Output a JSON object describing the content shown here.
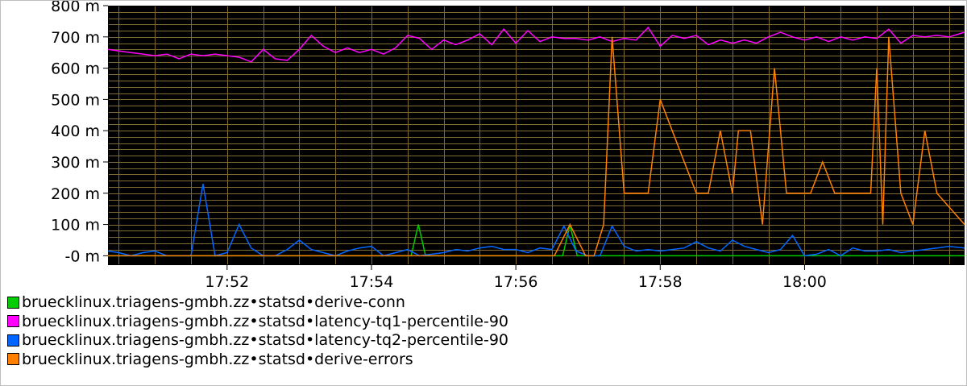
{
  "chart_data": {
    "type": "line",
    "background": "#000000",
    "grid": true,
    "grid_color": "#806a33",
    "ylim": [
      -0.03,
      0.8
    ],
    "y_ticks": [
      {
        "value": 0.8,
        "label": "800 m"
      },
      {
        "value": 0.7,
        "label": "700 m"
      },
      {
        "value": 0.6,
        "label": "600 m"
      },
      {
        "value": 0.5,
        "label": "500 m"
      },
      {
        "value": 0.4,
        "label": "400 m"
      },
      {
        "value": 0.3,
        "label": "300 m"
      },
      {
        "value": 0.2,
        "label": "200 m"
      },
      {
        "value": 0.1,
        "label": "100 m"
      },
      {
        "value": 0.0,
        "label": "-0 m"
      }
    ],
    "xlim": [
      "17:50:21",
      "18:02:13"
    ],
    "x_ticks": [
      {
        "value": "17:52:00",
        "label": "17:52"
      },
      {
        "value": "17:54:00",
        "label": "17:54"
      },
      {
        "value": "17:56:00",
        "label": "17:56"
      },
      {
        "value": "17:58:00",
        "label": "17:58"
      },
      {
        "value": "18:00:00",
        "label": "18:00"
      }
    ],
    "x_minor_grid_seconds": 30,
    "legend_position": "bottom",
    "series": [
      {
        "name": "bruecklinux.triagens-gmbh.zz•statsd•derive-conn",
        "color": "#00cc00",
        "points": [
          [
            "17:50:21",
            0
          ],
          [
            "17:54:33",
            0
          ],
          [
            "17:54:39",
            0.1
          ],
          [
            "17:54:45",
            0
          ],
          [
            "17:56:39",
            0
          ],
          [
            "17:56:45",
            0.1
          ],
          [
            "17:56:51",
            0
          ],
          [
            "18:02:13",
            0
          ]
        ]
      },
      {
        "name": "bruecklinux.triagens-gmbh.zz•statsd•latency-tq1-percentile-90",
        "color": "#ff00ff",
        "points": [
          [
            "17:50:21",
            0.66
          ],
          [
            "17:50:30",
            0.655
          ],
          [
            "17:50:40",
            0.65
          ],
          [
            "17:50:50",
            0.645
          ],
          [
            "17:51:00",
            0.64
          ],
          [
            "17:51:10",
            0.645
          ],
          [
            "17:51:20",
            0.63
          ],
          [
            "17:51:30",
            0.645
          ],
          [
            "17:51:40",
            0.64
          ],
          [
            "17:51:50",
            0.645
          ],
          [
            "17:52:00",
            0.64
          ],
          [
            "17:52:10",
            0.635
          ],
          [
            "17:52:20",
            0.62
          ],
          [
            "17:52:30",
            0.66
          ],
          [
            "17:52:40",
            0.63
          ],
          [
            "17:52:50",
            0.625
          ],
          [
            "17:53:00",
            0.66
          ],
          [
            "17:53:10",
            0.705
          ],
          [
            "17:53:20",
            0.67
          ],
          [
            "17:53:30",
            0.65
          ],
          [
            "17:53:40",
            0.665
          ],
          [
            "17:53:50",
            0.65
          ],
          [
            "17:54:00",
            0.66
          ],
          [
            "17:54:10",
            0.645
          ],
          [
            "17:54:20",
            0.665
          ],
          [
            "17:54:30",
            0.705
          ],
          [
            "17:54:40",
            0.695
          ],
          [
            "17:54:50",
            0.66
          ],
          [
            "17:55:00",
            0.69
          ],
          [
            "17:55:10",
            0.675
          ],
          [
            "17:55:20",
            0.69
          ],
          [
            "17:55:30",
            0.71
          ],
          [
            "17:55:40",
            0.675
          ],
          [
            "17:55:50",
            0.725
          ],
          [
            "17:56:00",
            0.68
          ],
          [
            "17:56:10",
            0.72
          ],
          [
            "17:56:20",
            0.685
          ],
          [
            "17:56:30",
            0.7
          ],
          [
            "17:56:40",
            0.695
          ],
          [
            "17:56:50",
            0.695
          ],
          [
            "17:57:00",
            0.69
          ],
          [
            "17:57:10",
            0.7
          ],
          [
            "17:57:20",
            0.685
          ],
          [
            "17:57:30",
            0.695
          ],
          [
            "17:57:40",
            0.69
          ],
          [
            "17:57:50",
            0.73
          ],
          [
            "17:58:00",
            0.67
          ],
          [
            "17:58:10",
            0.705
          ],
          [
            "17:58:20",
            0.695
          ],
          [
            "17:58:30",
            0.705
          ],
          [
            "17:58:40",
            0.675
          ],
          [
            "17:58:50",
            0.69
          ],
          [
            "17:59:00",
            0.68
          ],
          [
            "17:59:10",
            0.69
          ],
          [
            "17:59:20",
            0.68
          ],
          [
            "17:59:30",
            0.7
          ],
          [
            "17:59:40",
            0.715
          ],
          [
            "17:59:50",
            0.7
          ],
          [
            "18:00:00",
            0.69
          ],
          [
            "18:00:10",
            0.7
          ],
          [
            "18:00:20",
            0.685
          ],
          [
            "18:00:30",
            0.7
          ],
          [
            "18:00:40",
            0.69
          ],
          [
            "18:00:50",
            0.7
          ],
          [
            "18:01:00",
            0.695
          ],
          [
            "18:01:10",
            0.725
          ],
          [
            "18:01:20",
            0.68
          ],
          [
            "18:01:30",
            0.705
          ],
          [
            "18:01:40",
            0.7
          ],
          [
            "18:01:50",
            0.705
          ],
          [
            "18:02:00",
            0.7
          ],
          [
            "18:02:13",
            0.715
          ]
        ]
      },
      {
        "name": "bruecklinux.triagens-gmbh.zz•statsd•latency-tq2-percentile-90",
        "color": "#0066ff",
        "points": [
          [
            "17:50:21",
            0.015
          ],
          [
            "17:50:30",
            0.01
          ],
          [
            "17:50:40",
            0.0
          ],
          [
            "17:50:50",
            0.01
          ],
          [
            "17:51:00",
            0.015
          ],
          [
            "17:51:10",
            0.0
          ],
          [
            "17:51:20",
            0.0
          ],
          [
            "17:51:30",
            0.0
          ],
          [
            "17:51:40",
            0.23
          ],
          [
            "17:51:50",
            0.0
          ],
          [
            "17:52:00",
            0.01
          ],
          [
            "17:52:10",
            0.1
          ],
          [
            "17:52:20",
            0.025
          ],
          [
            "17:52:30",
            0.0
          ],
          [
            "17:52:40",
            0.0
          ],
          [
            "17:52:50",
            0.02
          ],
          [
            "17:53:00",
            0.05
          ],
          [
            "17:53:10",
            0.02
          ],
          [
            "17:53:20",
            0.01
          ],
          [
            "17:53:30",
            0.0
          ],
          [
            "17:53:40",
            0.015
          ],
          [
            "17:53:50",
            0.025
          ],
          [
            "17:54:00",
            0.03
          ],
          [
            "17:54:10",
            0.0
          ],
          [
            "17:54:20",
            0.01
          ],
          [
            "17:54:30",
            0.02
          ],
          [
            "17:54:40",
            0.0
          ],
          [
            "17:54:50",
            0.005
          ],
          [
            "17:55:00",
            0.01
          ],
          [
            "17:55:10",
            0.02
          ],
          [
            "17:55:20",
            0.015
          ],
          [
            "17:55:30",
            0.025
          ],
          [
            "17:55:40",
            0.03
          ],
          [
            "17:55:50",
            0.02
          ],
          [
            "17:56:00",
            0.02
          ],
          [
            "17:56:10",
            0.01
          ],
          [
            "17:56:20",
            0.025
          ],
          [
            "17:56:30",
            0.02
          ],
          [
            "17:56:40",
            0.095
          ],
          [
            "17:56:50",
            0.015
          ],
          [
            "17:57:00",
            0.0
          ],
          [
            "17:57:10",
            0.0
          ],
          [
            "17:57:20",
            0.095
          ],
          [
            "17:57:30",
            0.03
          ],
          [
            "17:57:40",
            0.015
          ],
          [
            "17:57:50",
            0.02
          ],
          [
            "17:58:00",
            0.015
          ],
          [
            "17:58:10",
            0.02
          ],
          [
            "17:58:20",
            0.025
          ],
          [
            "17:58:30",
            0.045
          ],
          [
            "17:58:40",
            0.025
          ],
          [
            "17:58:50",
            0.015
          ],
          [
            "17:59:00",
            0.05
          ],
          [
            "17:59:10",
            0.03
          ],
          [
            "17:59:20",
            0.02
          ],
          [
            "17:59:30",
            0.01
          ],
          [
            "17:59:40",
            0.02
          ],
          [
            "17:59:50",
            0.065
          ],
          [
            "18:00:00",
            0.0
          ],
          [
            "18:00:10",
            0.005
          ],
          [
            "18:00:20",
            0.02
          ],
          [
            "18:00:30",
            0.0
          ],
          [
            "18:00:40",
            0.025
          ],
          [
            "18:00:50",
            0.015
          ],
          [
            "18:01:00",
            0.015
          ],
          [
            "18:01:10",
            0.02
          ],
          [
            "18:01:20",
            0.01
          ],
          [
            "18:01:30",
            0.015
          ],
          [
            "18:01:40",
            0.02
          ],
          [
            "18:01:50",
            0.025
          ],
          [
            "18:02:00",
            0.03
          ],
          [
            "18:02:13",
            0.025
          ]
        ]
      },
      {
        "name": "bruecklinux.triagens-gmbh.zz•statsd•derive-errors",
        "color": "#ff7f00",
        "points": [
          [
            "17:50:21",
            0
          ],
          [
            "17:56:32",
            0
          ],
          [
            "17:56:45",
            0.1
          ],
          [
            "17:56:58",
            0
          ],
          [
            "17:57:05",
            0
          ],
          [
            "17:57:13",
            0.1
          ],
          [
            "17:57:20",
            0.7
          ],
          [
            "17:57:30",
            0.2
          ],
          [
            "17:57:40",
            0.2
          ],
          [
            "17:57:50",
            0.2
          ],
          [
            "17:58:00",
            0.5
          ],
          [
            "17:58:10",
            0.4
          ],
          [
            "17:58:30",
            0.2
          ],
          [
            "17:58:40",
            0.2
          ],
          [
            "17:58:50",
            0.4
          ],
          [
            "17:59:00",
            0.2
          ],
          [
            "17:59:05",
            0.4
          ],
          [
            "17:59:15",
            0.4
          ],
          [
            "17:59:25",
            0.1
          ],
          [
            "17:59:35",
            0.6
          ],
          [
            "17:59:45",
            0.2
          ],
          [
            "17:59:55",
            0.2
          ],
          [
            "18:00:05",
            0.2
          ],
          [
            "18:00:15",
            0.3
          ],
          [
            "18:00:25",
            0.2
          ],
          [
            "18:00:35",
            0.2
          ],
          [
            "18:00:45",
            0.2
          ],
          [
            "18:00:55",
            0.2
          ],
          [
            "18:01:00",
            0.6
          ],
          [
            "18:01:05",
            0.1
          ],
          [
            "18:01:10",
            0.7
          ],
          [
            "18:01:20",
            0.2
          ],
          [
            "18:01:30",
            0.1
          ],
          [
            "18:01:40",
            0.4
          ],
          [
            "18:01:50",
            0.2
          ],
          [
            "18:02:13",
            0.1
          ]
        ]
      }
    ]
  },
  "legend": [
    {
      "label": "bruecklinux.triagens-gmbh.zz•statsd•derive-conn",
      "color": "#00cc00"
    },
    {
      "label": "bruecklinux.triagens-gmbh.zz•statsd•latency-tq1-percentile-90",
      "color": "#ff00ff"
    },
    {
      "label": "bruecklinux.triagens-gmbh.zz•statsd•latency-tq2-percentile-90",
      "color": "#0066ff"
    },
    {
      "label": "bruecklinux.triagens-gmbh.zz•statsd•derive-errors",
      "color": "#ff7f00"
    }
  ]
}
